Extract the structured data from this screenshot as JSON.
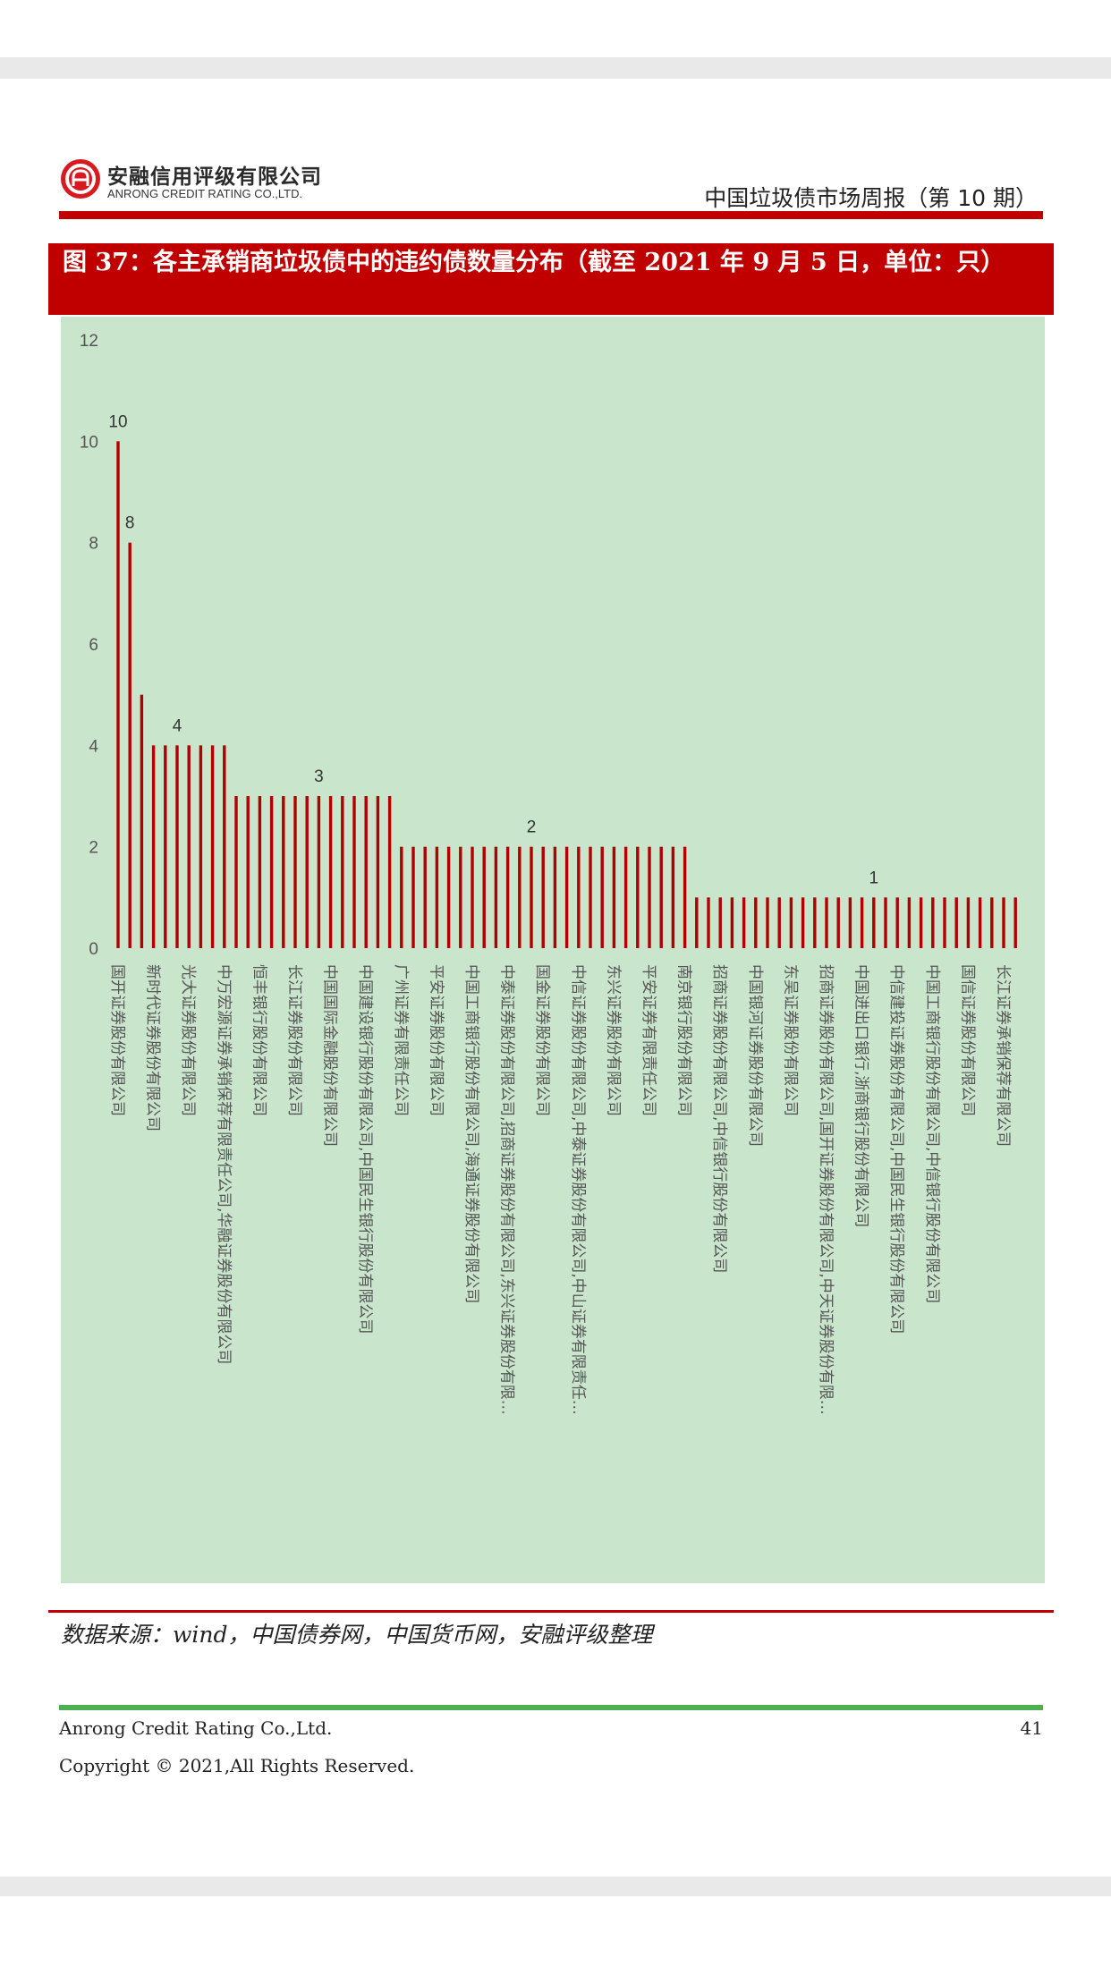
{
  "header": {
    "company_cn": "安融信用评级有限公司",
    "company_en": "ANRONG CREDIT RATING CO.,LTD.",
    "report_title": "中国垃圾债市场周报（第 10 期）"
  },
  "figure": {
    "title": "图 37：各主承销商垃圾债中的违约债数量分布（截至 2021 年 9 月 5 日，单位：只）"
  },
  "source_note": "数据来源：wind，中国债券网，中国货币网，安融评级整理",
  "footer": {
    "company": "Anrong Credit Rating Co.,Ltd.",
    "page_number": "41",
    "copyright": "Copyright © 2021,All Rights Reserved."
  },
  "colors": {
    "brand_red": "#c00000",
    "bar_red": "#b00000",
    "chart_bg": "#c9e6cd",
    "footer_green": "#4caf50"
  },
  "chart_data": {
    "type": "bar",
    "ylim": [
      0,
      12
    ],
    "yticks": [
      "0",
      "2",
      "4",
      "6",
      "8",
      "10",
      "12"
    ],
    "values": [
      10,
      8,
      5,
      4,
      4,
      4,
      4,
      4,
      4,
      4,
      3,
      3,
      3,
      3,
      3,
      3,
      3,
      3,
      3,
      3,
      3,
      3,
      3,
      3,
      2,
      2,
      2,
      2,
      2,
      2,
      2,
      2,
      2,
      2,
      2,
      2,
      2,
      2,
      2,
      2,
      2,
      2,
      2,
      2,
      2,
      2,
      2,
      2,
      2,
      1,
      1,
      1,
      1,
      1,
      1,
      1,
      1,
      1,
      1,
      1,
      1,
      1,
      1,
      1,
      1,
      1,
      1,
      1,
      1,
      1,
      1,
      1,
      1,
      1,
      1,
      1,
      1
    ],
    "data_labels": [
      {
        "index": 0,
        "text": "10"
      },
      {
        "index": 1,
        "text": "8"
      },
      {
        "index": 5,
        "text": "4"
      },
      {
        "index": 17,
        "text": "3"
      },
      {
        "index": 35,
        "text": "2"
      },
      {
        "index": 64,
        "text": "1"
      }
    ],
    "x_labels": [
      {
        "index": 0,
        "text": "国开证券股份有限公司"
      },
      {
        "index": 3,
        "text": "新时代证券股份有限公司"
      },
      {
        "index": 6,
        "text": "光大证券股份有限公司"
      },
      {
        "index": 9,
        "text": "中万宏源证券承销保荐有限责任公司,华融证券股份有限公司"
      },
      {
        "index": 12,
        "text": "恒丰银行股份有限公司"
      },
      {
        "index": 15,
        "text": "长江证券股份有限公司"
      },
      {
        "index": 18,
        "text": "中国国际金融股份有限公司"
      },
      {
        "index": 21,
        "text": "中国建设银行股份有限公司,中国民生银行股份有限公司"
      },
      {
        "index": 24,
        "text": "广州证券有限责任公司"
      },
      {
        "index": 27,
        "text": "平安证券股份有限公司"
      },
      {
        "index": 30,
        "text": "中国工商银行股份有限公司,海通证券股份有限公司"
      },
      {
        "index": 33,
        "text": "中泰证券股份有限公司,招商证券股份有限公司,东兴证券股份有限…"
      },
      {
        "index": 36,
        "text": "国金证券股份有限公司"
      },
      {
        "index": 39,
        "text": "中信证券股份有限公司,中泰证券股份有限公司,中山证券有限责任…"
      },
      {
        "index": 42,
        "text": "东兴证券股份有限公司"
      },
      {
        "index": 45,
        "text": "平安证券有限责任公司"
      },
      {
        "index": 48,
        "text": "南京银行股份有限公司"
      },
      {
        "index": 51,
        "text": "招商证券股份有限公司,中信银行股份有限公司"
      },
      {
        "index": 54,
        "text": "中国银河证券股份有限公司"
      },
      {
        "index": 57,
        "text": "东吴证券股份有限公司"
      },
      {
        "index": 60,
        "text": "招商证券股份有限公司,国开证券股份有限公司,中天证券股份有限…"
      },
      {
        "index": 63,
        "text": "中国进出口银行,浙商银行股份有限公司"
      },
      {
        "index": 66,
        "text": "中信建投证券股份有限公司,中国民生银行股份有限公司"
      },
      {
        "index": 69,
        "text": "中国工商银行股份有限公司,中信银行股份有限公司"
      },
      {
        "index": 72,
        "text": "国信证券股份有限公司"
      },
      {
        "index": 75,
        "text": "长江证券承销保荐有限公司"
      }
    ]
  }
}
